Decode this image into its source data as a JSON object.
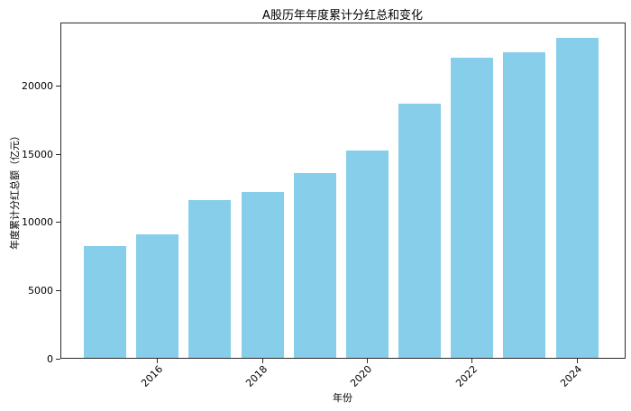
{
  "chart_data": {
    "type": "bar",
    "title": "A股历年年度累计分红总和变化",
    "xlabel": "年份",
    "ylabel": "年度累计分红总额（亿元）",
    "categories": [
      2015,
      2016,
      2017,
      2018,
      2019,
      2020,
      2021,
      2022,
      2023,
      2024
    ],
    "values": [
      8220,
      9080,
      11570,
      12190,
      13560,
      15210,
      18670,
      22000,
      22380,
      23480
    ],
    "xticks": [
      2016,
      2018,
      2020,
      2022,
      2024
    ],
    "yticks": [
      0,
      5000,
      10000,
      15000,
      20000
    ],
    "ylim": [
      0,
      24650
    ],
    "bar_color": "#87CEEB",
    "grid": false,
    "legend": "none",
    "background_color": "#ffffff",
    "spine_color": "#2b2b2b"
  }
}
